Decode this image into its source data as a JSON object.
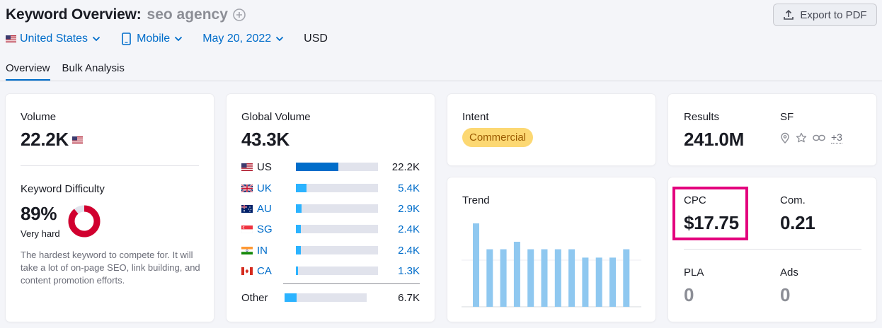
{
  "header": {
    "title": "Keyword Overview:",
    "keyword": "seo agency",
    "export_label": "Export to PDF"
  },
  "filters": {
    "country": "United States",
    "device": "Mobile",
    "date": "May 20, 2022",
    "currency": "USD"
  },
  "tabs": [
    "Overview",
    "Bulk Analysis"
  ],
  "volume": {
    "label": "Volume",
    "value": "22.2K"
  },
  "difficulty": {
    "label": "Keyword Difficulty",
    "value": "89%",
    "level": "Very hard",
    "percent": 89,
    "description": "The hardest keyword to compete for. It will take a lot of on-page SEO, link building, and content promotion efforts."
  },
  "global_volume": {
    "label": "Global Volume",
    "value": "43.3K",
    "rows": [
      {
        "code": "US",
        "value": "22.2K",
        "share": 0.52
      },
      {
        "code": "UK",
        "value": "5.4K",
        "share": 0.13
      },
      {
        "code": "AU",
        "value": "2.9K",
        "share": 0.07
      },
      {
        "code": "SG",
        "value": "2.4K",
        "share": 0.06
      },
      {
        "code": "IN",
        "value": "2.4K",
        "share": 0.06
      },
      {
        "code": "CA",
        "value": "1.3K",
        "share": 0.03
      }
    ],
    "other": {
      "label": "Other",
      "value": "6.7K",
      "share": 0.15
    }
  },
  "intent": {
    "label": "Intent",
    "value": "Commercial"
  },
  "trend": {
    "label": "Trend",
    "values": [
      1.0,
      0.69,
      0.69,
      0.78,
      0.69,
      0.69,
      0.69,
      0.69,
      0.59,
      0.59,
      0.59,
      0.69
    ]
  },
  "results": {
    "label": "Results",
    "value": "241.0M"
  },
  "sf": {
    "label": "SF",
    "more": "+3"
  },
  "cpc": {
    "label": "CPC",
    "value": "$17.75"
  },
  "com": {
    "label": "Com.",
    "value": "0.21"
  },
  "pla": {
    "label": "PLA",
    "value": "0"
  },
  "ads": {
    "label": "Ads",
    "value": "0"
  },
  "colors": {
    "accent": "#006dca",
    "bar": "#2bb3ff",
    "us_bar": "#006dca",
    "difficulty": "#d1002f",
    "intent_badge": "#fcd873",
    "trend_bar": "#8fc8f0",
    "highlight": "#e3007d"
  }
}
